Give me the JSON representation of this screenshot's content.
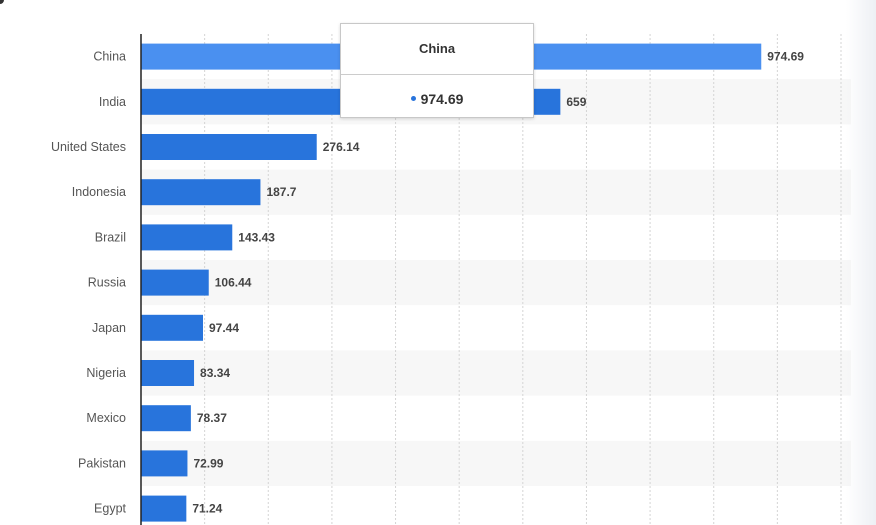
{
  "chart_data": {
    "type": "bar",
    "orientation": "horizontal",
    "categories": [
      "China",
      "India",
      "United States",
      "Indonesia",
      "Brazil",
      "Russia",
      "Japan",
      "Nigeria",
      "Mexico",
      "Pakistan",
      "Egypt"
    ],
    "values": [
      974.69,
      659,
      276.14,
      187.7,
      143.43,
      106.44,
      97.44,
      83.34,
      78.37,
      72.99,
      71.24
    ],
    "data_labels": [
      "974.69",
      "659",
      "276.14",
      "187.7",
      "143.43",
      "106.44",
      "97.44",
      "83.34",
      "78.37",
      "72.99",
      "71.24"
    ],
    "xlim": [
      0,
      1100
    ],
    "grid": "vertical dotted every 100",
    "bar_color": "#2874dc",
    "highlight_color": "#4a90f0",
    "highlighted_category": "China"
  },
  "tooltip": {
    "title": "China",
    "value": "974.69",
    "dot_color": "#2874dc"
  }
}
